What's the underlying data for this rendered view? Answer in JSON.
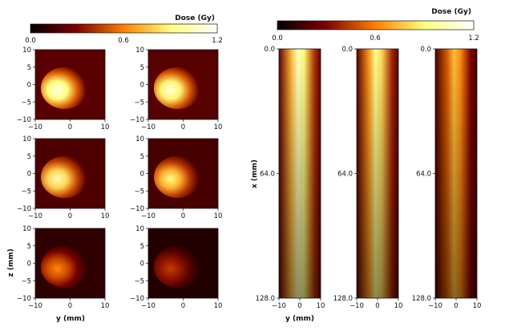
{
  "chart_data": {
    "type": "heatmap",
    "colormap": "afmhot",
    "colorbars": [
      {
        "title": "Dose (Gy)",
        "ticks": [
          "0.0",
          "0.6",
          "1.2"
        ],
        "range": [
          0,
          1.2
        ]
      },
      {
        "title": "Dose (Gy)",
        "ticks": [
          "0.0",
          "0.6",
          "1.2"
        ],
        "range": [
          0,
          1.2
        ]
      }
    ],
    "cross_sections": {
      "xlabel": "y (mm)",
      "ylabel": "z (mm)",
      "xlim": [
        -10,
        10
      ],
      "ylim": [
        -10,
        10
      ],
      "x_ticks": [
        "−10",
        "0",
        "10"
      ],
      "y_ticks": [
        "10",
        "5",
        "0",
        "−5",
        "−10"
      ],
      "panels": [
        {
          "peak_dose": 1.15
        },
        {
          "peak_dose": 1.12
        },
        {
          "peak_dose": 1.02
        },
        {
          "peak_dose": 0.92
        },
        {
          "peak_dose": 0.62
        },
        {
          "peak_dose": 0.45
        }
      ]
    },
    "depth_profiles": {
      "xlabel": "y (mm)",
      "ylabel": "x (mm)",
      "xlim": [
        -10,
        10
      ],
      "ylim": [
        0,
        128
      ],
      "x_ticks": [
        "−10",
        "0",
        "10"
      ],
      "y_ticks": [
        "0.0",
        "64.0",
        "128.0"
      ],
      "panels": [
        {
          "peak_dose": 1.05
        },
        {
          "peak_dose": 0.95
        },
        {
          "peak_dose": 0.75
        }
      ]
    }
  }
}
